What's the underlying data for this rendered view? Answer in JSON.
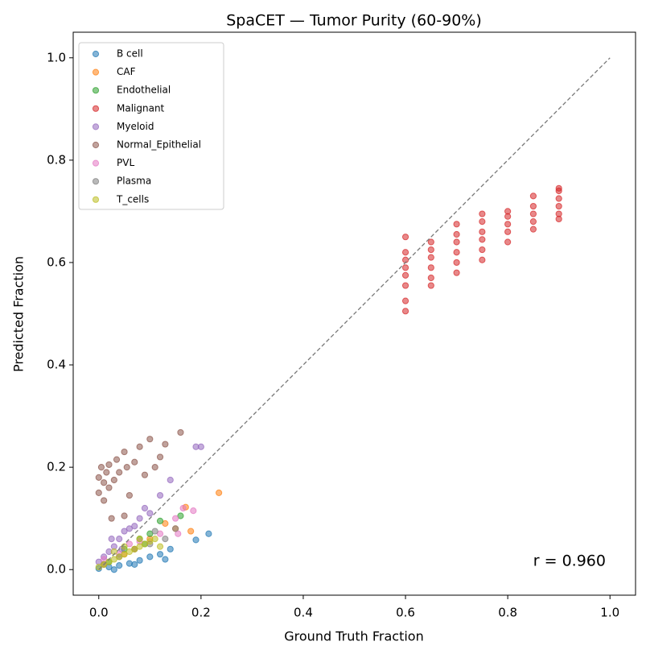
{
  "chart_data": {
    "type": "scatter",
    "title": "SpaCET — Tumor Purity (60-90%)",
    "x_label": "Ground Truth Fraction",
    "y_label": "Predicted Fraction",
    "xlim": [
      -0.05,
      1.05
    ],
    "ylim": [
      -0.05,
      1.05
    ],
    "xticks": [
      {
        "value": 0,
        "label": "0.0"
      },
      0.2,
      0.4,
      0.6,
      0.8,
      {
        "value": 1,
        "label": "1.0"
      }
    ],
    "yticks": [
      {
        "value": 0,
        "label": "0.0"
      },
      0.2,
      0.4,
      0.6,
      0.8,
      {
        "value": 1,
        "label": "1.0"
      }
    ],
    "legend": "upper left",
    "annotation": "r = 0.960",
    "reference_line": {
      "x": [
        0,
        1
      ],
      "y": [
        0,
        1
      ]
    },
    "series": [
      {
        "name": "B cell",
        "color": "#1f77b4",
        "x": [
          0,
          0.02,
          0.04,
          0.06,
          0.08,
          0.1,
          0.12,
          0.13,
          0.14,
          0.19,
          0.215,
          0.03,
          0.07
        ],
        "y": [
          0.002,
          0.005,
          0.008,
          0.012,
          0.018,
          0.025,
          0.03,
          0.02,
          0.04,
          0.058,
          0.07,
          0.0,
          0.01
        ]
      },
      {
        "name": "CAF",
        "color": "#ff7f0e",
        "x": [
          0.01,
          0.05,
          0.1,
          0.13,
          0.15,
          0.18,
          0.235,
          0.17,
          0.07
        ],
        "y": [
          0.01,
          0.03,
          0.06,
          0.09,
          0.08,
          0.075,
          0.15,
          0.122,
          0.04
        ]
      },
      {
        "name": "Endothelial",
        "color": "#2ca02c",
        "x": [
          0.02,
          0.05,
          0.08,
          0.1,
          0.12,
          0.16,
          0.09
        ],
        "y": [
          0.015,
          0.04,
          0.06,
          0.07,
          0.095,
          0.105,
          0.05
        ]
      },
      {
        "name": "Malignant",
        "color": "#d62728",
        "x": [
          0.6,
          0.6,
          0.6,
          0.6,
          0.6,
          0.6,
          0.6,
          0.6,
          0.65,
          0.65,
          0.65,
          0.65,
          0.65,
          0.65,
          0.7,
          0.7,
          0.7,
          0.7,
          0.7,
          0.7,
          0.75,
          0.75,
          0.75,
          0.75,
          0.75,
          0.75,
          0.8,
          0.8,
          0.8,
          0.8,
          0.8,
          0.85,
          0.85,
          0.85,
          0.85,
          0.85,
          0.9,
          0.9,
          0.9,
          0.9,
          0.9,
          0.9
        ],
        "y": [
          0.505,
          0.525,
          0.555,
          0.575,
          0.59,
          0.605,
          0.62,
          0.65,
          0.555,
          0.57,
          0.59,
          0.61,
          0.625,
          0.64,
          0.58,
          0.6,
          0.62,
          0.64,
          0.655,
          0.675,
          0.605,
          0.625,
          0.645,
          0.66,
          0.68,
          0.695,
          0.64,
          0.66,
          0.675,
          0.69,
          0.7,
          0.665,
          0.68,
          0.695,
          0.71,
          0.73,
          0.685,
          0.695,
          0.71,
          0.725,
          0.74,
          0.745
        ]
      },
      {
        "name": "Myeloid",
        "color": "#9467bd",
        "x": [
          0,
          0.01,
          0.02,
          0.03,
          0.04,
          0.05,
          0.06,
          0.07,
          0.08,
          0.09,
          0.1,
          0.12,
          0.14,
          0.19,
          0.2,
          0.025,
          0.045
        ],
        "y": [
          0.015,
          0.025,
          0.035,
          0.045,
          0.06,
          0.075,
          0.08,
          0.085,
          0.1,
          0.12,
          0.11,
          0.145,
          0.175,
          0.24,
          0.24,
          0.06,
          0.04
        ]
      },
      {
        "name": "Normal_Epithelial",
        "color": "#8c564b",
        "x": [
          0,
          0,
          0.005,
          0.01,
          0.01,
          0.015,
          0.02,
          0.02,
          0.03,
          0.035,
          0.04,
          0.05,
          0.055,
          0.06,
          0.07,
          0.08,
          0.09,
          0.1,
          0.11,
          0.12,
          0.13,
          0.16,
          0.05,
          0.025
        ],
        "y": [
          0.15,
          0.18,
          0.2,
          0.135,
          0.17,
          0.19,
          0.16,
          0.205,
          0.175,
          0.215,
          0.19,
          0.23,
          0.2,
          0.145,
          0.21,
          0.24,
          0.185,
          0.255,
          0.2,
          0.22,
          0.245,
          0.268,
          0.105,
          0.1
        ]
      },
      {
        "name": "PVL",
        "color": "#e377c2",
        "x": [
          0.01,
          0.04,
          0.08,
          0.12,
          0.15,
          0.165,
          0.185,
          0.155,
          0.06
        ],
        "y": [
          0.02,
          0.03,
          0.055,
          0.07,
          0.1,
          0.12,
          0.115,
          0.07,
          0.05
        ]
      },
      {
        "name": "Plasma",
        "color": "#7f7f7f",
        "x": [
          0.01,
          0.04,
          0.07,
          0.1,
          0.13,
          0.15,
          0.11
        ],
        "y": [
          0.01,
          0.025,
          0.04,
          0.05,
          0.06,
          0.08,
          0.075
        ]
      },
      {
        "name": "T_cells",
        "color": "#bcbd22",
        "x": [
          0,
          0.01,
          0.02,
          0.03,
          0.04,
          0.05,
          0.06,
          0.07,
          0.08,
          0.09,
          0.1,
          0.11,
          0.12,
          0.05,
          0.08,
          0.03
        ],
        "y": [
          0.005,
          0.01,
          0.015,
          0.02,
          0.025,
          0.03,
          0.035,
          0.04,
          0.045,
          0.05,
          0.055,
          0.06,
          0.045,
          0.045,
          0.06,
          0.035
        ]
      }
    ]
  }
}
